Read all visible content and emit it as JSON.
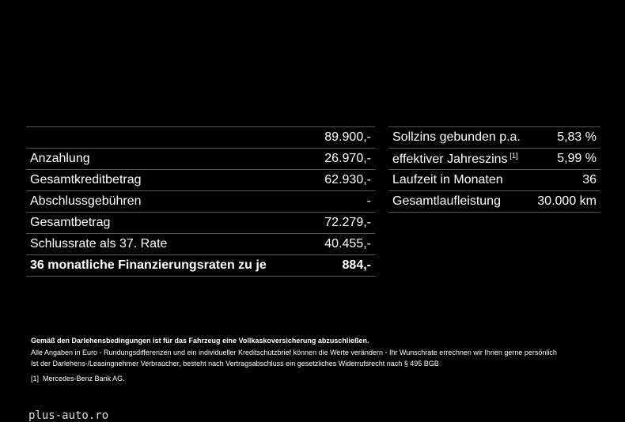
{
  "left_table": {
    "rows": [
      {
        "value": "89.900,-"
      },
      {
        "label": "Anzahlung",
        "value": "26.970,-"
      },
      {
        "label": "Gesamtkreditbetrag",
        "value": "62.930,-"
      },
      {
        "label": "Abschlussgebühren",
        "value": "-"
      },
      {
        "label": "Gesamtbetrag",
        "value": "72.279,-"
      },
      {
        "label": "Schlussrate als 37. Rate",
        "value": "40.455,-"
      },
      {
        "label": "36 monatliche Finanzierungsraten zu je",
        "value": "884,-",
        "bold": true
      }
    ]
  },
  "right_table": {
    "rows": [
      {
        "label": "Sollzins gebunden p.a.",
        "value": "5,83 %"
      },
      {
        "label": "effektiver Jahreszins",
        "note": "[1]",
        "value": "5,99 %"
      },
      {
        "label": "Laufzeit in Monaten",
        "value": "36"
      },
      {
        "label": "Gesamtlaufleistung",
        "value": "30.000 km"
      }
    ]
  },
  "footer": {
    "heading": "Gemäß den Darlehensbedingungen ist für das Fahrzeug eine Vollkaskoversicherung abzuschließen.",
    "line1": "Alle Angaben in Euro - Rundungsdifferenzen und ein individueller Kreditschutzbrief können die Werte verändern - Ihr Wunschrate errechnen wir Ihnen gerne persönlich",
    "line2": "Ist der Darlehens-/Leasingnehmer Verbraucher, besteht nach Vertragsabschluss ein gesetzliches Widerrufsrecht nach § 495 BGB",
    "note_mark": "[1]",
    "note_text": "Mercedes-Benz Bank AG."
  },
  "watermark": "plus-auto.ro"
}
